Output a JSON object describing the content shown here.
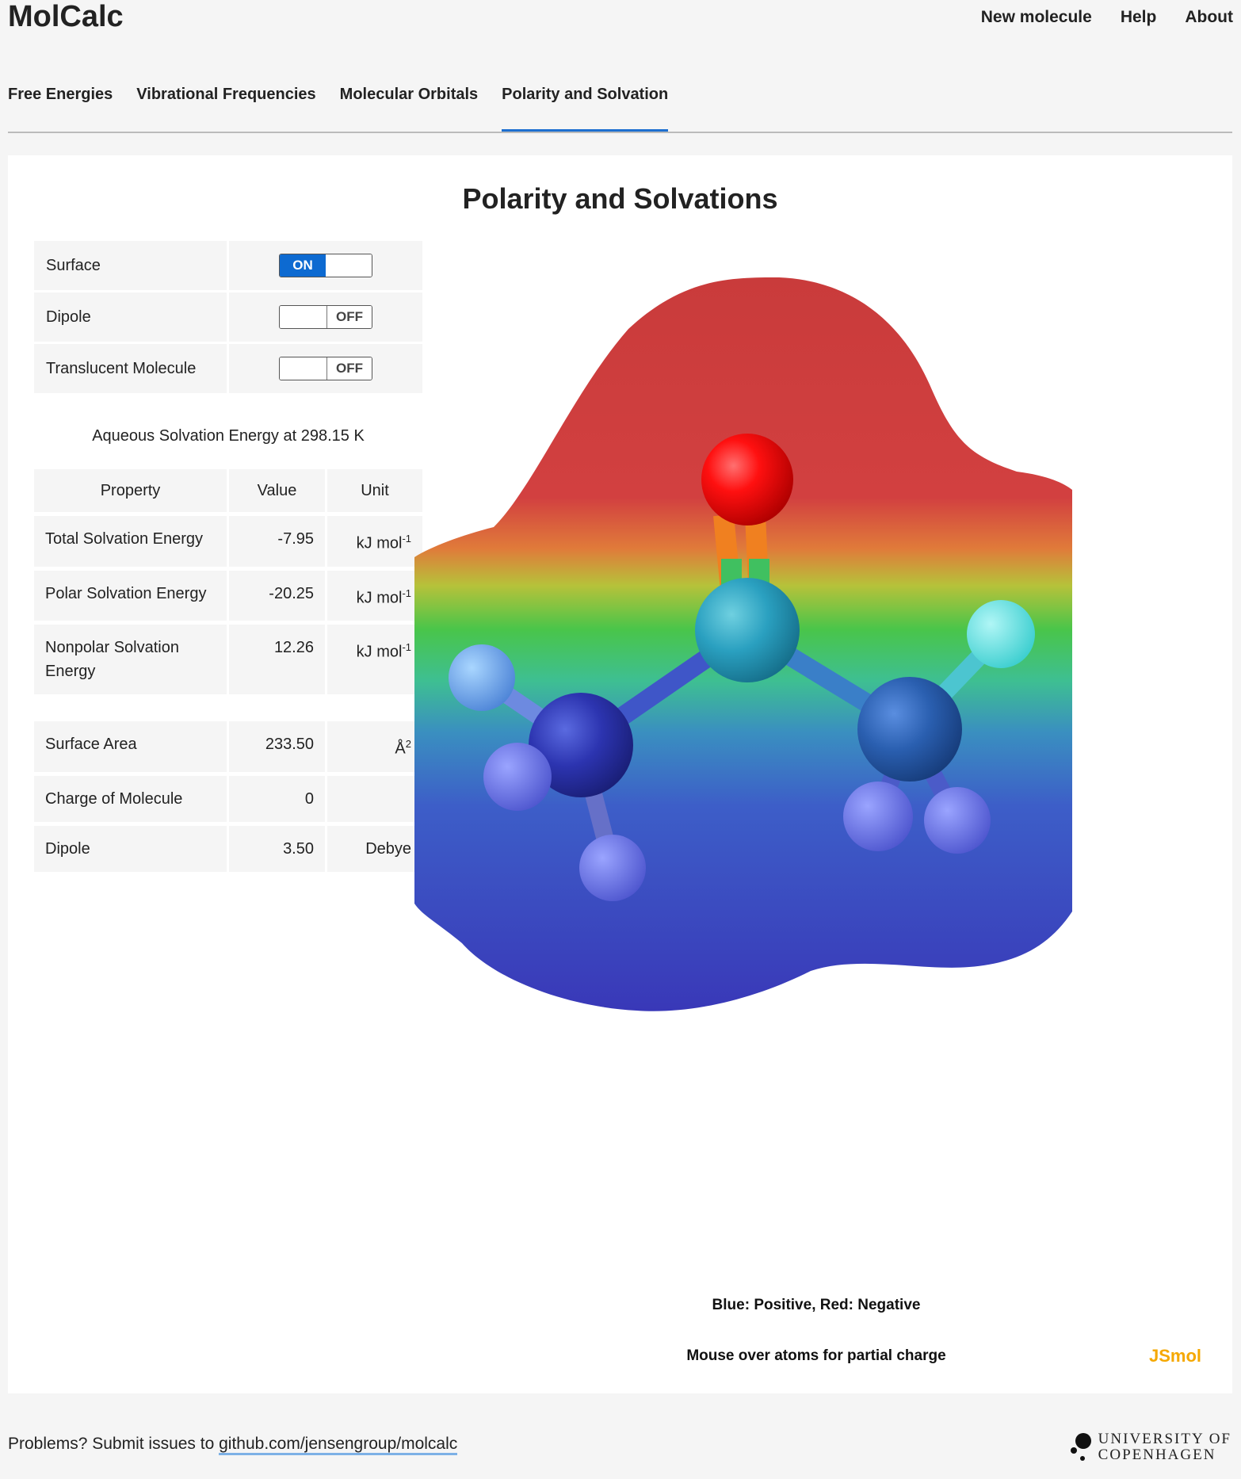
{
  "app": {
    "title": "MolCalc"
  },
  "nav": {
    "items": [
      "New molecule",
      "Help",
      "About"
    ]
  },
  "tabs": [
    {
      "label": "Free Energies",
      "active": false
    },
    {
      "label": "Vibrational Frequencies",
      "active": false
    },
    {
      "label": "Molecular Orbitals",
      "active": false
    },
    {
      "label": "Polarity and Solvation",
      "active": true
    }
  ],
  "page": {
    "heading": "Polarity and Solvations"
  },
  "controls": [
    {
      "label": "Surface",
      "state": "ON"
    },
    {
      "label": "Dipole",
      "state": "OFF"
    },
    {
      "label": "Translucent Molecule",
      "state": "OFF"
    }
  ],
  "solvation": {
    "caption": "Aqueous Solvation Energy at 298.15 K",
    "headers": [
      "Property",
      "Value",
      "Unit"
    ],
    "rows": [
      {
        "property": "Total Solvation Energy",
        "value": "-7.95",
        "unit": "kJ mol",
        "sup": "-1"
      },
      {
        "property": "Polar Solvation Energy",
        "value": "-20.25",
        "unit": "kJ mol",
        "sup": "-1"
      },
      {
        "property": "Nonpolar Solvation Energy",
        "value": "12.26",
        "unit": "kJ mol",
        "sup": "-1"
      }
    ]
  },
  "properties": [
    {
      "property": "Surface Area",
      "value": "233.50",
      "unit": "Å",
      "sup": "2"
    },
    {
      "property": "Charge of Molecule",
      "value": "0",
      "unit": "",
      "sup": ""
    },
    {
      "property": "Dipole",
      "value": "3.50",
      "unit": "Debye",
      "sup": ""
    }
  ],
  "viewer": {
    "legend_colors": "Blue: Positive, Red: Negative",
    "legend_hint": "Mouse over atoms for partial charge",
    "brand": "JSmol",
    "colors": {
      "negative": "#d23c3c",
      "positive": "#3a3fc8",
      "oxygen": "#ff2020",
      "carbon": "#2aa0c0"
    }
  },
  "footer": {
    "text": "Problems? Submit issues to ",
    "link": "github.com/jensengroup/molcalc",
    "university_line1": "UNIVERSITY OF",
    "university_line2": "COPENHAGEN"
  }
}
